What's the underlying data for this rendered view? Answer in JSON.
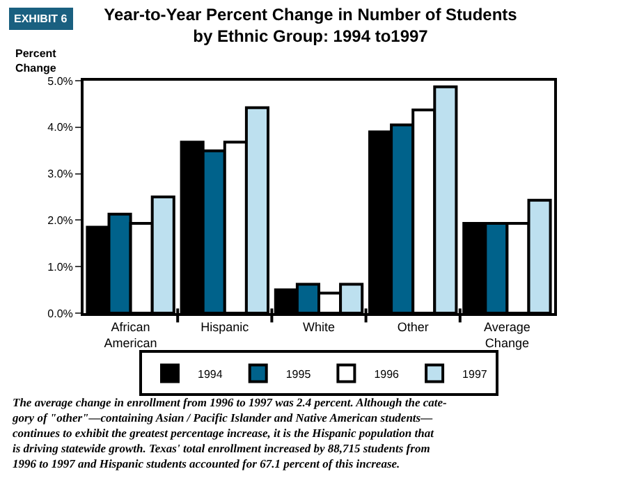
{
  "chart_data": {
    "type": "bar",
    "title": "Year-to-Year Percent Change in Number of Students\nby Ethnic Group: 1994 to1997",
    "ylabel": "Percent\nChange",
    "categories": [
      "African\nAmerican",
      "Hispanic",
      "White",
      "Other",
      "Average\nChange"
    ],
    "series": [
      {
        "name": "1994",
        "color": "#000000",
        "values": [
          1.85,
          3.68,
          0.5,
          3.9,
          1.93
        ]
      },
      {
        "name": "1995",
        "color": "#00628b",
        "values": [
          2.13,
          3.49,
          0.62,
          4.05,
          1.93
        ]
      },
      {
        "name": "1996",
        "color": "#ffffff",
        "values": [
          1.93,
          3.68,
          0.43,
          4.37,
          1.93
        ]
      },
      {
        "name": "1997",
        "color": "#bde0ef",
        "values": [
          2.5,
          4.42,
          0.62,
          4.87,
          2.43
        ]
      }
    ],
    "ylim": [
      0,
      5
    ],
    "yticks": [
      {
        "value": 0,
        "label": "0.0%"
      },
      {
        "value": 1,
        "label": "1.0%"
      },
      {
        "value": 2,
        "label": "2.0%"
      },
      {
        "value": 3,
        "label": "3.0%"
      },
      {
        "value": 4,
        "label": "4.0%"
      },
      {
        "value": 5,
        "label": "5.0%"
      }
    ],
    "legend": "bottom",
    "annotations": [
      "EXHIBIT 6",
      "The average change in enrollment from 1996 to 1997 was 2.4 percent. Although the cate-\ngory of \"other\"—containing Asian / Pacific Islander and Native American students—\ncontinues to exhibit the greatest percentage increase, it is the Hispanic population that\nis driving statewide growth. Texas' total enrollment increased by 88,715 students from\n1996 to 1997 and Hispanic students accounted for 67.1 percent of this increase."
    ]
  }
}
